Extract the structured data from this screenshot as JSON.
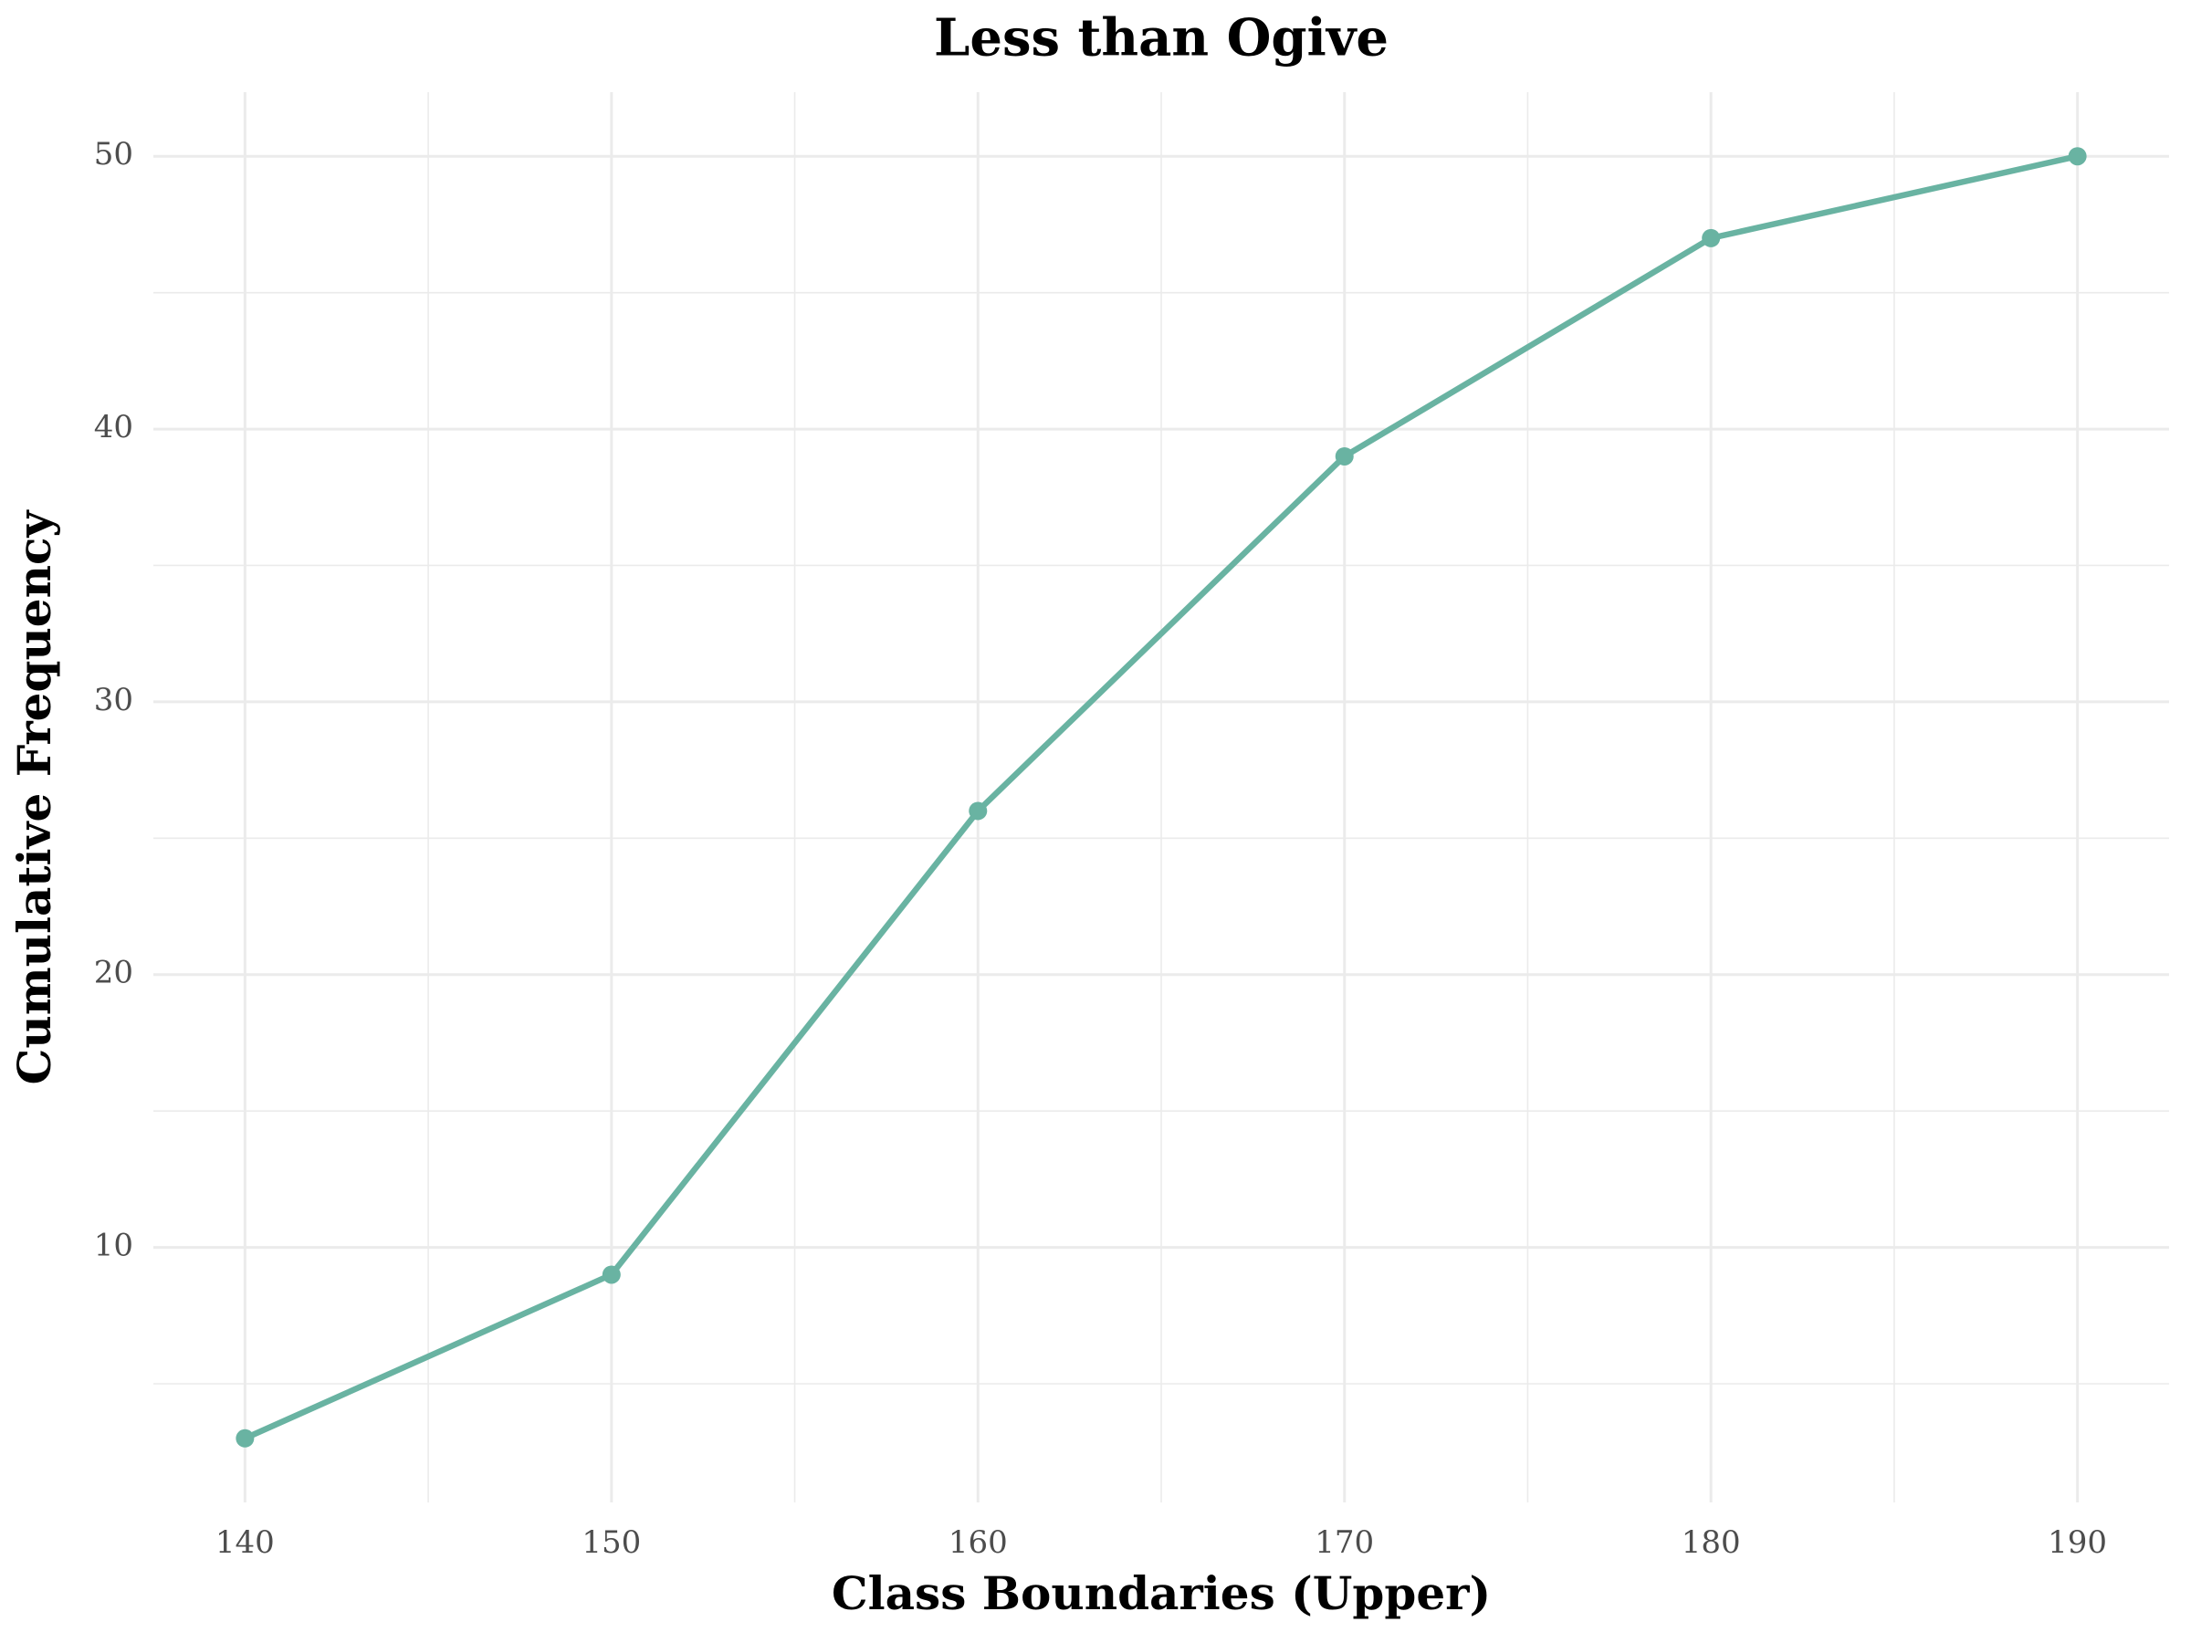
{
  "chart_data": {
    "type": "line",
    "title": "Less than Ogive",
    "x_label": "Class Boundaries (Upper)",
    "y_label": "Cumulative Frequency",
    "x": [
      140,
      150,
      160,
      170,
      180,
      190
    ],
    "series": [
      {
        "name": "Cumulative Frequency",
        "color": "#69b3a2",
        "values": [
          3,
          9,
          26,
          39,
          47,
          50
        ]
      }
    ],
    "xlim": [
      137.5,
      192.5
    ],
    "xticks": [
      140,
      150,
      160,
      170,
      180,
      190
    ],
    "ylim": [
      0.65,
      52.35
    ],
    "yticks": [
      10,
      20,
      30,
      40,
      50
    ],
    "grid": true,
    "minor_grid": true
  }
}
